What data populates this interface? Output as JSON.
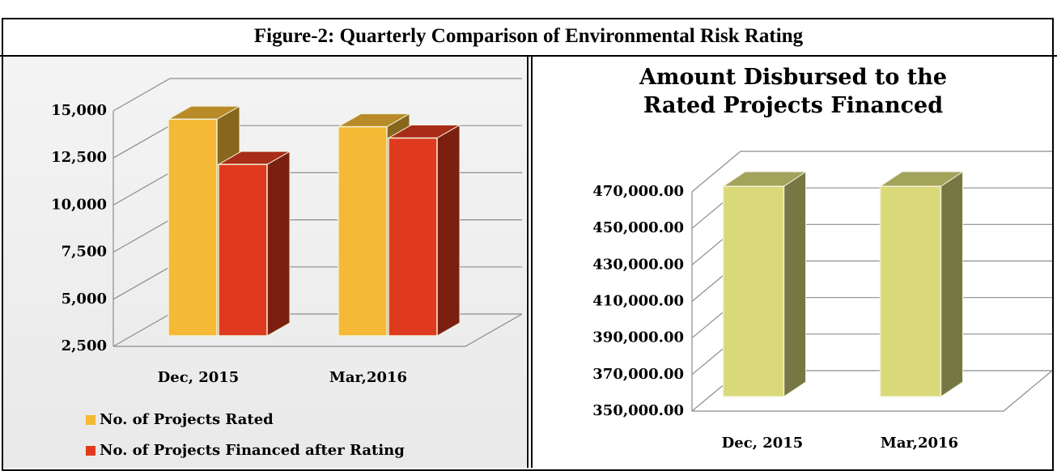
{
  "title": "Figure-2: Quarterly Comparison of Environmental Risk Rating",
  "chart_data": [
    {
      "type": "bar",
      "categories": [
        "Dec, 2015",
        "Mar,2016"
      ],
      "series": [
        {
          "name": "No. of Projects Rated",
          "color": "#f5b935",
          "values": [
            14000,
            13600
          ]
        },
        {
          "name": "No. of Projects Financed after Rating",
          "color": "#e03a1e",
          "values": [
            11600,
            13000
          ]
        }
      ],
      "ylim": [
        2500,
        15000
      ],
      "yticks": [
        {
          "value": 2500,
          "label": "2,500"
        },
        {
          "value": 5000,
          "label": "5,000"
        },
        {
          "value": 7500,
          "label": "7,500"
        },
        {
          "value": 10000,
          "label": "10,000"
        },
        {
          "value": 12500,
          "label": "12,500"
        },
        {
          "value": 15000,
          "label": "15,000"
        }
      ],
      "grid": true,
      "legend": "bottom-left"
    },
    {
      "type": "bar",
      "title": "Amount Disbursed to the Rated Projects Financed",
      "categories": [
        "Dec, 2015",
        "Mar,2016"
      ],
      "values": [
        465000,
        465000
      ],
      "color": "#d9d97a",
      "ylim": [
        350000,
        470000
      ],
      "yticks": [
        {
          "value": 350000,
          "label": "350,000.00"
        },
        {
          "value": 370000,
          "label": "370,000.00"
        },
        {
          "value": 390000,
          "label": "390,000.00"
        },
        {
          "value": 410000,
          "label": "410,000.00"
        },
        {
          "value": 430000,
          "label": "430,000.00"
        },
        {
          "value": 450000,
          "label": "450,000.00"
        },
        {
          "value": 470000,
          "label": "470,000.00"
        }
      ],
      "grid": true
    }
  ]
}
